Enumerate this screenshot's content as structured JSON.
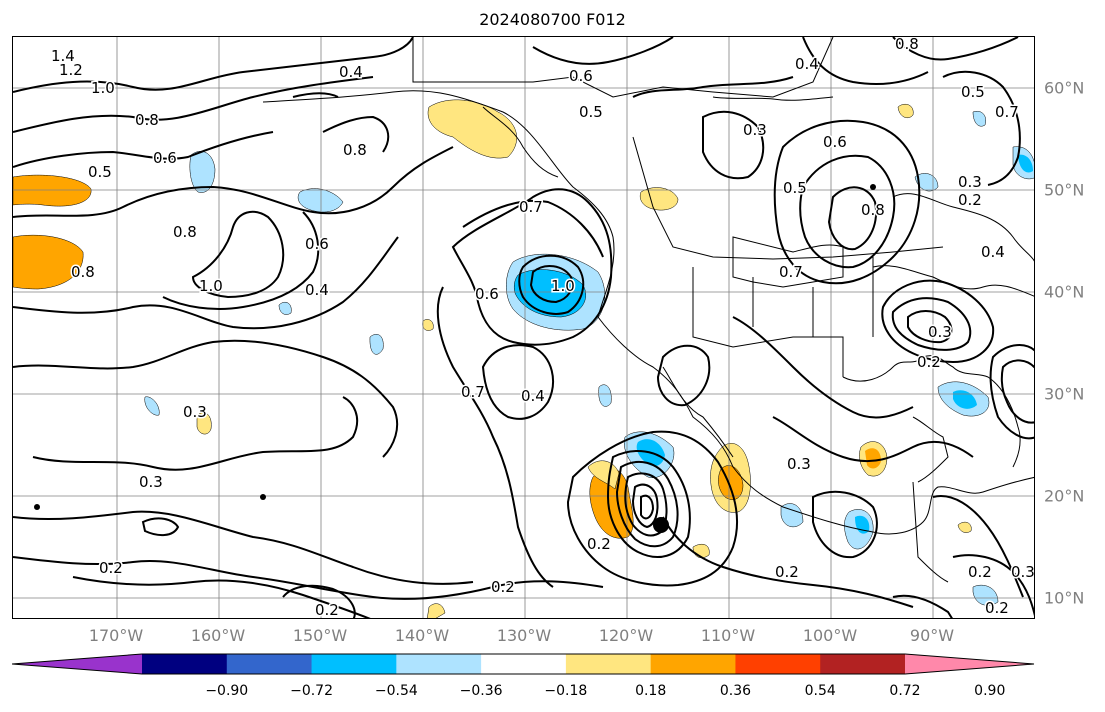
{
  "title": "2024080700 F012",
  "map": {
    "lon_ticks": [
      "170°W",
      "160°W",
      "150°W",
      "140°W",
      "130°W",
      "120°W",
      "110°W",
      "100°W",
      "90°W"
    ],
    "lat_ticks": [
      "60°N",
      "50°N",
      "40°N",
      "30°N",
      "20°N",
      "10°N"
    ],
    "contour_labels": [
      "1.4",
      "1.2",
      "1.0",
      "0.8",
      "0.6",
      "0.5",
      "0.8",
      "1.0",
      "0.8",
      "0.4",
      "0.6",
      "0.4",
      "0.8",
      "0.3",
      "0.3",
      "0.2",
      "0.2",
      "0.2",
      "0.7",
      "0.6",
      "1.0",
      "0.4",
      "0.7",
      "0.6",
      "0.5",
      "0.3",
      "0.5",
      "0.4",
      "0.6",
      "0.8",
      "0.7",
      "0.3",
      "0.2",
      "0.4",
      "0.2",
      "0.3",
      "0.2",
      "0.2",
      "0.3",
      "0.2",
      "0.7",
      "0.5",
      "0.3",
      "0.8",
      "0.2"
    ],
    "colors": {
      "land": "#000000",
      "grid": "#808080",
      "contour": "#000000"
    }
  },
  "colorbar": {
    "ticks": [
      "−0.90",
      "−0.72",
      "−0.54",
      "−0.36",
      "−0.18",
      "0.18",
      "0.36",
      "0.54",
      "0.72",
      "0.90"
    ],
    "colors": [
      "#9933cc",
      "#000080",
      "#3366cc",
      "#00bfff",
      "#aee3ff",
      "#ffffff",
      "#ffe680",
      "#ffa500",
      "#ff4000",
      "#b22222",
      "#ff88aa"
    ]
  }
}
